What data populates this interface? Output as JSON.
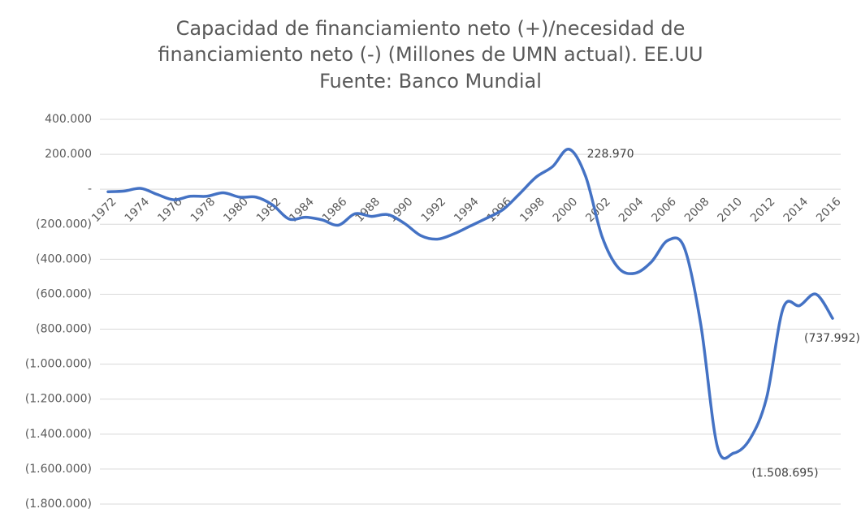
{
  "chart_data": {
    "type": "line",
    "title_lines": [
      "Capacidad de financiamiento neto (+)/necesidad de",
      "financiamiento neto (-) (Millones de UMN actual). EE.UU",
      "Fuente: Banco Mundial"
    ],
    "categories": [
      "1972",
      null,
      "1974",
      null,
      "1976",
      null,
      "1978",
      null,
      "1980",
      null,
      "1982",
      null,
      "1984",
      null,
      "1986",
      null,
      "1988",
      null,
      "1990",
      null,
      "1992",
      null,
      "1994",
      null,
      "1996",
      null,
      "1998",
      null,
      "2000",
      null,
      "2002",
      null,
      "2004",
      null,
      "2006",
      null,
      "2008",
      null,
      "2010",
      null,
      "2012",
      null,
      "2014",
      null,
      "2016"
    ],
    "series": [
      {
        "name": "Capacidad de financiamiento neto",
        "color": "#4472c4",
        "values": [
          -14000,
          -10000,
          5000,
          -30000,
          -60000,
          -40000,
          -40000,
          -20000,
          -45000,
          -45000,
          -90000,
          -170000,
          -160000,
          -175000,
          -205000,
          -140000,
          -155000,
          -145000,
          -195000,
          -265000,
          -285000,
          -255000,
          -210000,
          -165000,
          -115000,
          -25000,
          70000,
          130000,
          228970,
          75000,
          -270000,
          -450000,
          -480000,
          -415000,
          -292000,
          -335000,
          -775000,
          -1470000,
          -1508695,
          -1425000,
          -1190000,
          -680000,
          -665000,
          -600000,
          -737992
        ],
        "value_labels": [
          null,
          null,
          null,
          null,
          null,
          null,
          null,
          null,
          null,
          null,
          null,
          null,
          null,
          null,
          null,
          null,
          null,
          null,
          null,
          null,
          null,
          null,
          null,
          null,
          null,
          null,
          null,
          null,
          "228.970",
          null,
          null,
          null,
          null,
          null,
          null,
          null,
          null,
          null,
          "(1.508.695)",
          null,
          null,
          null,
          null,
          null,
          "(737.992)"
        ]
      }
    ],
    "ylim": [
      -1800000,
      400000
    ],
    "yticks": [
      {
        "value": 400000,
        "label": "400.000"
      },
      {
        "value": 200000,
        "label": "200.000"
      },
      {
        "value": 0,
        "label": "-"
      },
      {
        "value": -200000,
        "label": "(200.000)"
      },
      {
        "value": -400000,
        "label": "(400.000)"
      },
      {
        "value": -600000,
        "label": "(600.000)"
      },
      {
        "value": -800000,
        "label": "(800.000)"
      },
      {
        "value": -1000000,
        "label": "(1.000.000)"
      },
      {
        "value": -1200000,
        "label": "(1.200.000)"
      },
      {
        "value": -1400000,
        "label": "(1.400.000)"
      },
      {
        "value": -1600000,
        "label": "(1.600.000)"
      },
      {
        "value": -1800000,
        "label": "(1.800.000)"
      }
    ],
    "grid": true
  }
}
